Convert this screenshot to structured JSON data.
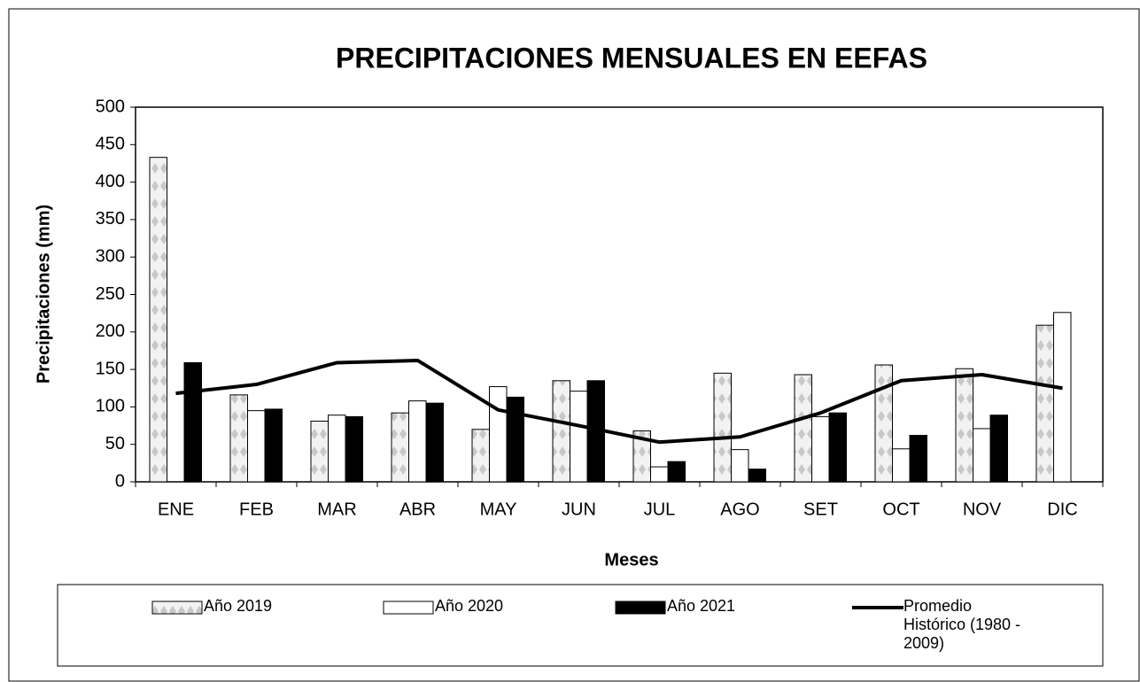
{
  "chart_data": {
    "type": "bar",
    "title": "PRECIPITACIONES  MENSUALES  EN EEFAS",
    "x_label": "Meses",
    "y_label": "Precipitaciones (mm)",
    "categories": [
      "ENE",
      "FEB",
      "MAR",
      "ABR",
      "MAY",
      "JUN",
      "JUL",
      "AGO",
      "SET",
      "OCT",
      "NOV",
      "DIC"
    ],
    "series": [
      {
        "name": "Año 2019",
        "color": "#d9d9d9",
        "values": [
          433,
          116,
          81,
          92,
          70,
          135,
          68,
          145,
          143,
          156,
          151,
          209
        ]
      },
      {
        "name": "Año 2020",
        "color": "#ffffff",
        "values": [
          null,
          95,
          89,
          108,
          127,
          121,
          20,
          43,
          87,
          44,
          71,
          226
        ]
      },
      {
        "name": "Año 2021",
        "color": "#000000",
        "values": [
          159,
          97,
          87,
          105,
          113,
          135,
          27,
          17,
          92,
          62,
          89,
          null
        ]
      },
      {
        "name": "Promedio Histórico (1980 - 2009)",
        "color": "#000000",
        "type": "line",
        "values": [
          118,
          130,
          159,
          162,
          96,
          75,
          53,
          60,
          92,
          135,
          143,
          125
        ]
      }
    ],
    "ylim": [
      0,
      500
    ],
    "yticks": [
      0,
      50,
      100,
      150,
      200,
      250,
      300,
      350,
      400,
      450,
      500
    ]
  }
}
